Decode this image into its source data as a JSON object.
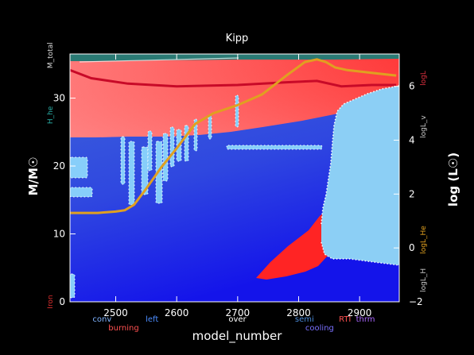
{
  "chart_data": {
    "type": "area",
    "title": "Kipp",
    "xlabel": "model_number",
    "ylabel": "M/M☉",
    "y2label": "log (L☉)",
    "xlim": [
      2425,
      2965
    ],
    "ylim": [
      0,
      36.5
    ],
    "y2lim": [
      -2,
      7.2
    ],
    "x_ticks": [
      2500,
      2600,
      2700,
      2800,
      2900
    ],
    "y_ticks": [
      0,
      10,
      20,
      30
    ],
    "y2_ticks": [
      -2,
      0,
      2,
      4,
      6
    ],
    "colors": {
      "background": "#000000",
      "burning": "#ff4a4a",
      "cooling": "#2a39e6",
      "convection": "#87cefa",
      "total_mass": "#2a7a74",
      "luminosity": "#e0a020",
      "log_L_line": "#c80a28"
    },
    "left_annotations": [
      {
        "text": "M_total",
        "color": "#d8d8d8",
        "y": 36.3
      },
      {
        "text": "H_he",
        "color": "#2ab0a8",
        "y": 27.5
      },
      {
        "text": "Iron",
        "color": "#e03030",
        "y": 0
      }
    ],
    "right_annotations": [
      {
        "text": "logL",
        "color": "#e03040",
        "y2": 6.3
      },
      {
        "text": "logL_v",
        "color": "#c8c8c8",
        "y2": 4.5
      },
      {
        "text": "logL_He",
        "color": "#e0a020",
        "y2": 0.3
      },
      {
        "text": "logL_H",
        "color": "#c8c8c8",
        "y2": -1.2
      }
    ],
    "legend": [
      {
        "text": "conv",
        "color": "#7fb3ff",
        "row": 0,
        "x": 2462
      },
      {
        "text": "burning",
        "color": "#ff5050",
        "row": 1,
        "x": 2488
      },
      {
        "text": "left",
        "color": "#4c8dff",
        "row": 0,
        "x": 2549
      },
      {
        "text": "over",
        "color": "#ffffff",
        "row": 0,
        "x": 2685
      },
      {
        "text": "semi",
        "color": "#4a8ad8",
        "row": 0,
        "x": 2794
      },
      {
        "text": "cooling",
        "color": "#7a70ff",
        "row": 1,
        "x": 2811
      },
      {
        "text": "RTI",
        "color": "#ff5050",
        "row": 0,
        "x": 2866
      },
      {
        "text": "thrm",
        "color": "#aa66ff",
        "row": 0,
        "x": 2894
      }
    ],
    "series": [
      {
        "name": "logL_He",
        "axis": "y2",
        "x": [
          2425,
          2470,
          2500,
          2515,
          2530,
          2550,
          2575,
          2600,
          2630,
          2660,
          2700,
          2740,
          2780,
          2810,
          2830,
          2845,
          2860,
          2880,
          2920,
          2960
        ],
        "values": [
          1.3,
          1.3,
          1.35,
          1.4,
          1.6,
          2.2,
          3.0,
          3.7,
          4.6,
          5.0,
          5.3,
          5.7,
          6.4,
          6.9,
          7.0,
          6.9,
          6.7,
          6.6,
          6.5,
          6.4
        ]
      },
      {
        "name": "logL",
        "axis": "y2",
        "x": [
          2425,
          2460,
          2520,
          2600,
          2700,
          2780,
          2830,
          2870,
          2920,
          2960
        ],
        "values": [
          6.6,
          6.3,
          6.1,
          6.0,
          6.05,
          6.15,
          6.2,
          6.0,
          6.05,
          6.05
        ]
      }
    ]
  }
}
